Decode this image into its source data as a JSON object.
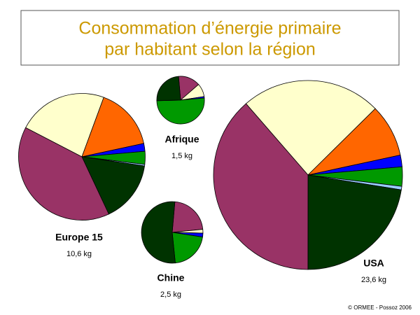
{
  "chart_data": {
    "type": "pie",
    "title": [
      "Consommation d’énergie primaire",
      "par habitant selon la région"
    ],
    "pies": [
      {
        "name": "Europe 15",
        "value": 10.6,
        "value_label": "10,6 kg",
        "values": [
          23,
          16,
          2,
          3.3,
          0.4,
          15.7,
          39.6
        ],
        "colors": [
          "#ffffcc",
          "#ff6600",
          "#0000ff",
          "#009900",
          "#99ccff",
          "#003300",
          "#993366"
        ]
      },
      {
        "name": "Afrique",
        "value": 1.5,
        "value_label": "1,5 kg",
        "values": [
          15,
          9,
          1,
          51,
          24
        ],
        "colors": [
          "#993366",
          "#ffffcc",
          "#0000ff",
          "#009900",
          "#003300"
        ]
      },
      {
        "name": "Chine",
        "value": 2.5,
        "value_label": "2,5 kg",
        "values": [
          22,
          2,
          2,
          21,
          53
        ],
        "colors": [
          "#993366",
          "#ffffcc",
          "#0000ff",
          "#009900",
          "#003300"
        ]
      },
      {
        "name": "USA",
        "value": 23.6,
        "value_label": "23,6 kg",
        "values": [
          24,
          9,
          2,
          3.3,
          0.6,
          22.5,
          38.6
        ],
        "colors": [
          "#ffffcc",
          "#ff6600",
          "#0000ff",
          "#009900",
          "#99ccff",
          "#003300",
          "#993366"
        ]
      }
    ],
    "note": "© ORMEE - Possoz 2006"
  }
}
